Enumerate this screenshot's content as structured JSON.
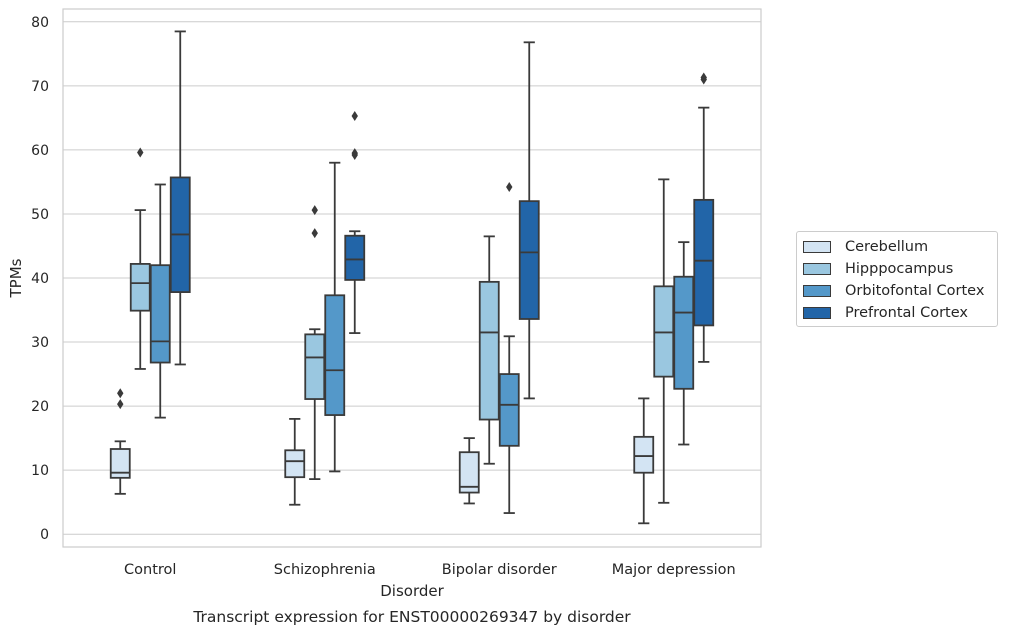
{
  "chart_data": {
    "type": "box",
    "caption": "Transcript expression for ENST00000269347 by disorder",
    "xlabel": "Disorder",
    "ylabel": "TPMs",
    "ylim": [
      -2,
      82
    ],
    "yticks": [
      0,
      10,
      20,
      30,
      40,
      50,
      60,
      70,
      80
    ],
    "grid": "horizontal",
    "legend_placement": "right",
    "categories": [
      "Control",
      "Schizophrenia",
      "Bipolar disorder",
      "Major depression"
    ],
    "series": [
      {
        "name": "Cerebellum",
        "color": "#d3e4f3",
        "boxes": [
          {
            "whislo": 6.3,
            "q1": 8.8,
            "med": 9.6,
            "q3": 13.3,
            "whishi": 14.5,
            "fliers": [
              20.3,
              22.0
            ]
          },
          {
            "whislo": 4.6,
            "q1": 8.9,
            "med": 11.4,
            "q3": 13.1,
            "whishi": 18.0,
            "fliers": []
          },
          {
            "whislo": 4.8,
            "q1": 6.5,
            "med": 7.4,
            "q3": 12.8,
            "whishi": 15.0,
            "fliers": []
          },
          {
            "whislo": 1.7,
            "q1": 9.6,
            "med": 12.2,
            "q3": 15.2,
            "whishi": 21.2,
            "fliers": []
          }
        ]
      },
      {
        "name": "Hipppocampus",
        "color": "#9ac7e0",
        "boxes": [
          {
            "whislo": 25.8,
            "q1": 34.9,
            "med": 39.2,
            "q3": 42.2,
            "whishi": 50.6,
            "fliers": [
              59.6
            ]
          },
          {
            "whislo": 8.6,
            "q1": 21.1,
            "med": 27.6,
            "q3": 31.2,
            "whishi": 32.0,
            "fliers": [
              47.0,
              50.6
            ]
          },
          {
            "whislo": 11.0,
            "q1": 17.9,
            "med": 31.5,
            "q3": 39.4,
            "whishi": 46.5,
            "fliers": []
          },
          {
            "whislo": 4.9,
            "q1": 24.6,
            "med": 31.5,
            "q3": 38.7,
            "whishi": 55.4,
            "fliers": []
          }
        ]
      },
      {
        "name": "Orbitofontal Cortex",
        "color": "#5498c9",
        "boxes": [
          {
            "whislo": 18.2,
            "q1": 26.8,
            "med": 30.1,
            "q3": 42.0,
            "whishi": 54.6,
            "fliers": []
          },
          {
            "whislo": 9.8,
            "q1": 18.6,
            "med": 25.6,
            "q3": 37.3,
            "whishi": 58.0,
            "fliers": []
          },
          {
            "whislo": 3.3,
            "q1": 13.8,
            "med": 20.2,
            "q3": 25.0,
            "whishi": 30.9,
            "fliers": [
              54.2
            ]
          },
          {
            "whislo": 14.0,
            "q1": 22.7,
            "med": 34.6,
            "q3": 40.2,
            "whishi": 45.6,
            "fliers": []
          }
        ]
      },
      {
        "name": "Prefrontal Cortex",
        "color": "#2265a8",
        "boxes": [
          {
            "whislo": 26.5,
            "q1": 37.8,
            "med": 46.8,
            "q3": 55.7,
            "whishi": 78.5,
            "fliers": []
          },
          {
            "whislo": 31.4,
            "q1": 39.7,
            "med": 42.9,
            "q3": 46.6,
            "whishi": 47.3,
            "fliers": [
              59.2,
              59.5,
              65.3
            ]
          },
          {
            "whislo": 21.2,
            "q1": 33.6,
            "med": 44.0,
            "q3": 52.0,
            "whishi": 76.8,
            "fliers": []
          },
          {
            "whislo": 26.9,
            "q1": 32.6,
            "med": 42.7,
            "q3": 52.2,
            "whishi": 66.6,
            "fliers": [
              71.0,
              71.3
            ]
          }
        ]
      }
    ]
  }
}
